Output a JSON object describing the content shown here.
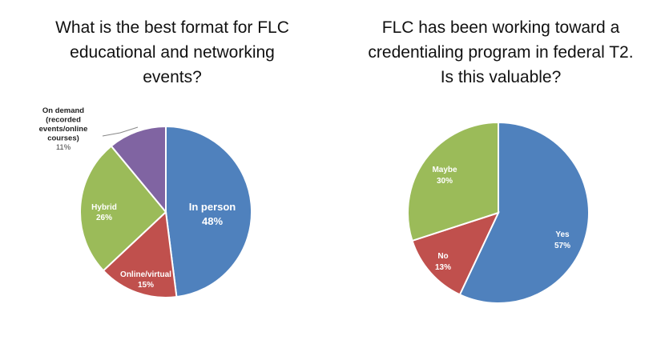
{
  "chart_data": [
    {
      "type": "pie",
      "title": [
        "What is the best format for FLC",
        "educational and networking",
        "events?"
      ],
      "slices": [
        {
          "label": "In person",
          "value": 48,
          "pct_label": "48%",
          "color": "#4f81bd"
        },
        {
          "label": "Online/virtual",
          "value": 15,
          "pct_label": "15%",
          "color": "#c0504d"
        },
        {
          "label": "Hybrid",
          "value": 26,
          "pct_label": "26%",
          "color": "#9bbb59"
        },
        {
          "label": "On demand (recorded events/online courses)",
          "label_lines": [
            "On demand",
            "(recorded",
            "events/online",
            "courses)"
          ],
          "value": 11,
          "pct_label": "11%",
          "color": "#8064a2"
        }
      ]
    },
    {
      "type": "pie",
      "title": [
        "FLC has been working toward a",
        "credentialing program in federal T2.",
        "Is this valuable?"
      ],
      "slices": [
        {
          "label": "Yes",
          "value": 57,
          "pct_label": "57%",
          "color": "#4f81bd"
        },
        {
          "label": "No",
          "value": 13,
          "pct_label": "13%",
          "color": "#c0504d"
        },
        {
          "label": "Maybe",
          "value": 30,
          "pct_label": "30%",
          "color": "#9bbb59"
        }
      ]
    }
  ]
}
